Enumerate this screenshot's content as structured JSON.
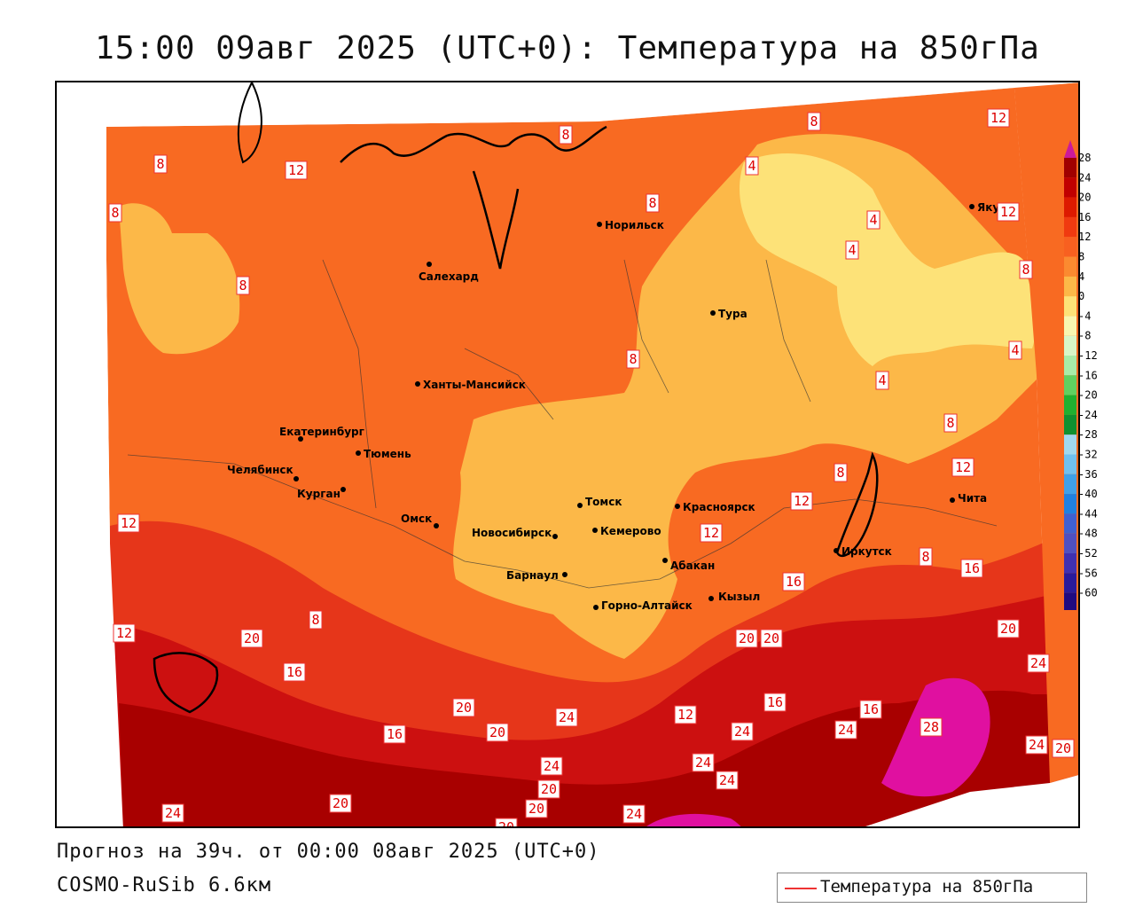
{
  "title": "15:00 09авг 2025 (UTC+0): Температура на 850гПа",
  "footer": {
    "forecast": "Прогноз на 39ч. от 00:00 08авг 2025 (UTC+0)",
    "model": "COSMO-RuSib 6.6км"
  },
  "legend": {
    "label": "Температура на 850гПа",
    "line_color": "#ee3333"
  },
  "colorbar": {
    "labels": [
      "28",
      "24",
      "20",
      "16",
      "12",
      "8",
      "4",
      "0",
      "-4",
      "-8",
      "-12",
      "-16",
      "-20",
      "-24",
      "-28",
      "-32",
      "-36",
      "-40",
      "-44",
      "-48",
      "-52",
      "-56",
      "-60"
    ],
    "colors": [
      "#a00000",
      "#c00000",
      "#dd1a00",
      "#f03a10",
      "#f86020",
      "#fb8a30",
      "#fcb848",
      "#fde278",
      "#f8f6b0",
      "#d8f6c8",
      "#a8eca8",
      "#60d060",
      "#20b030",
      "#109030",
      "#a0d8f0",
      "#70c0f0",
      "#40a0e8",
      "#2080e0",
      "#4060d0",
      "#5050c0",
      "#4030b0",
      "#2a1a9a",
      "#200a80"
    ],
    "top_color": "#cc1a9a",
    "bottom_color": "#9a2aca"
  },
  "cities": [
    {
      "name": "Норильск"
    },
    {
      "name": "Салехард"
    },
    {
      "name": "Тура"
    },
    {
      "name": "Якутск"
    },
    {
      "name": "Ханты-Мансийск"
    },
    {
      "name": "Екатеринбург"
    },
    {
      "name": "Тюмень"
    },
    {
      "name": "Челябинск"
    },
    {
      "name": "Курган"
    },
    {
      "name": "Омск"
    },
    {
      "name": "Томск"
    },
    {
      "name": "Красноярск"
    },
    {
      "name": "Новосибирск"
    },
    {
      "name": "Кемерово"
    },
    {
      "name": "Абакан"
    },
    {
      "name": "Барнаул"
    },
    {
      "name": "Горно-Алтайск"
    },
    {
      "name": "Кызыл"
    },
    {
      "name": "Иркутск"
    },
    {
      "name": "Чита"
    }
  ],
  "isotherm_labels": [
    "8",
    "12",
    "8",
    "8",
    "8",
    "8",
    "8",
    "4",
    "4",
    "4",
    "4",
    "12",
    "12",
    "8",
    "4",
    "8",
    "8",
    "8",
    "12",
    "12",
    "12",
    "8",
    "16",
    "16",
    "12",
    "8",
    "12",
    "20",
    "16",
    "20",
    "20",
    "20",
    "16",
    "24",
    "12",
    "16",
    "16",
    "20",
    "24",
    "20",
    "24",
    "28",
    "20",
    "24",
    "24",
    "24",
    "20",
    "24",
    "20",
    "24",
    "20",
    "24",
    "24",
    "20"
  ]
}
